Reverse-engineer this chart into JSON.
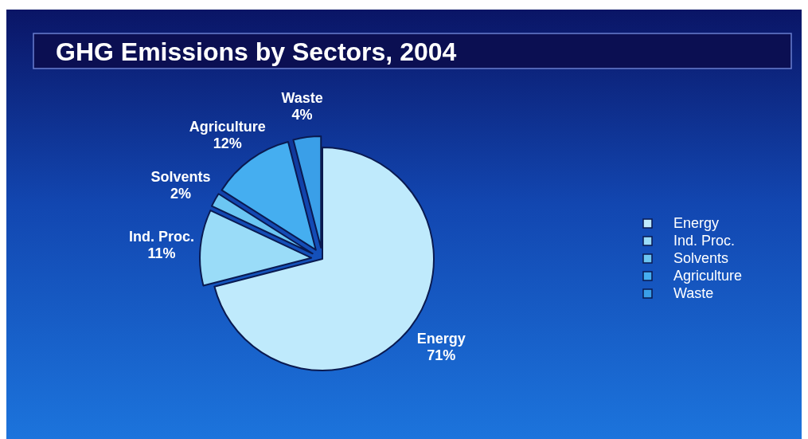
{
  "chart_data": {
    "type": "pie",
    "title": "GHG Emissions by Sectors, 2004",
    "categories": [
      "Energy",
      "Ind. Proc.",
      "Solvents",
      "Agriculture",
      "Waste"
    ],
    "values": [
      71,
      11,
      2,
      12,
      4
    ],
    "colors": [
      "#bfeafc",
      "#9adcf8",
      "#6cc6f2",
      "#45aef0",
      "#3a9fe8"
    ],
    "value_labels": [
      "71%",
      "11%",
      "2%",
      "12%",
      "4%"
    ],
    "legend": "right"
  }
}
